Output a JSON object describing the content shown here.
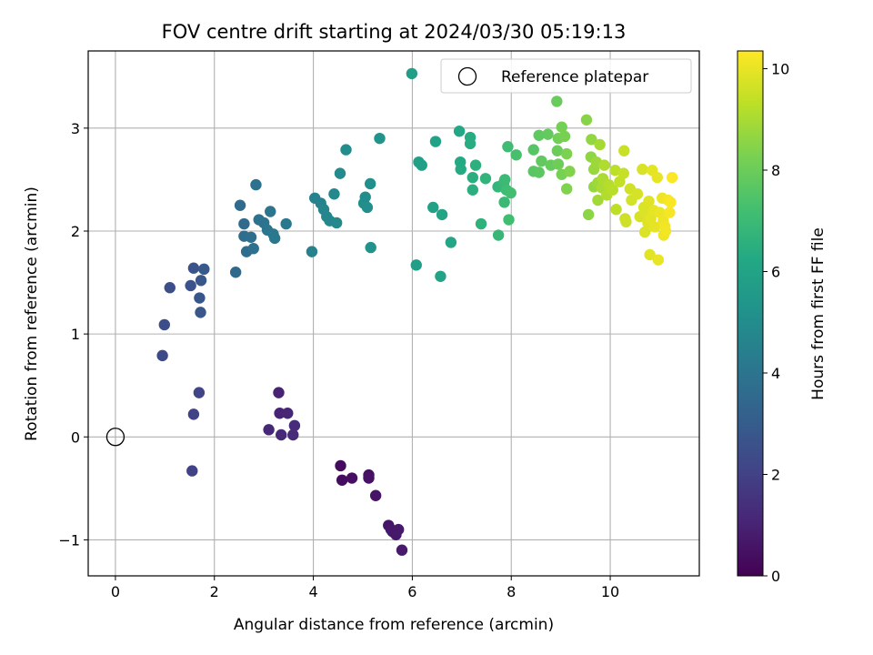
{
  "chart_data": {
    "type": "scatter",
    "title": "FOV centre drift starting at 2024/03/30 05:19:13",
    "xlabel": "Angular distance from reference (arcmin)",
    "ylabel": "Rotation from reference (arcmin)",
    "xlim": [
      -0.55,
      11.8
    ],
    "ylim": [
      -1.35,
      3.75
    ],
    "xticks": [
      0,
      2,
      4,
      6,
      8,
      10
    ],
    "yticks": [
      -1,
      0,
      1,
      2,
      3
    ],
    "ytick_labels": [
      "−1",
      "0",
      "1",
      "2",
      "3"
    ],
    "grid": true,
    "legend": {
      "position": "top-right",
      "entries": [
        "Reference platepar"
      ]
    },
    "reference_point": {
      "x": 0,
      "y": 0,
      "label": "Reference platepar"
    },
    "colormap": "viridis",
    "colorbar": {
      "label": "Hours from first FF file",
      "range": [
        0,
        10.35
      ],
      "ticks": [
        0,
        2,
        4,
        6,
        8,
        10
      ]
    },
    "points": [
      {
        "x": 4.55,
        "y": -0.28,
        "h": 0.3
      },
      {
        "x": 4.58,
        "y": -0.42,
        "h": 0.35
      },
      {
        "x": 4.78,
        "y": -0.4,
        "h": 0.4
      },
      {
        "x": 5.12,
        "y": -0.37,
        "h": 0.45
      },
      {
        "x": 5.12,
        "y": -0.4,
        "h": 0.5
      },
      {
        "x": 5.26,
        "y": -0.57,
        "h": 0.55
      },
      {
        "x": 5.52,
        "y": -0.86,
        "h": 0.6
      },
      {
        "x": 5.57,
        "y": -0.9,
        "h": 0.62
      },
      {
        "x": 5.6,
        "y": -0.92,
        "h": 0.65
      },
      {
        "x": 5.67,
        "y": -0.95,
        "h": 0.68
      },
      {
        "x": 5.72,
        "y": -0.9,
        "h": 0.7
      },
      {
        "x": 5.79,
        "y": -1.1,
        "h": 0.75
      },
      {
        "x": 3.3,
        "y": 0.43,
        "h": 1.0
      },
      {
        "x": 3.32,
        "y": 0.23,
        "h": 1.05
      },
      {
        "x": 3.48,
        "y": 0.23,
        "h": 1.1
      },
      {
        "x": 3.1,
        "y": 0.07,
        "h": 1.15
      },
      {
        "x": 3.35,
        "y": 0.02,
        "h": 1.2
      },
      {
        "x": 3.59,
        "y": 0.02,
        "h": 1.25
      },
      {
        "x": 3.62,
        "y": 0.11,
        "h": 1.3
      },
      {
        "x": 1.55,
        "y": -0.33,
        "h": 2.0
      },
      {
        "x": 1.58,
        "y": 0.22,
        "h": 2.05
      },
      {
        "x": 1.69,
        "y": 0.43,
        "h": 2.1
      },
      {
        "x": 0.95,
        "y": 0.79,
        "h": 2.3
      },
      {
        "x": 0.99,
        "y": 1.09,
        "h": 2.4
      },
      {
        "x": 1.1,
        "y": 1.45,
        "h": 2.5
      },
      {
        "x": 1.52,
        "y": 1.47,
        "h": 2.6
      },
      {
        "x": 1.58,
        "y": 1.64,
        "h": 2.7
      },
      {
        "x": 1.7,
        "y": 1.35,
        "h": 2.75
      },
      {
        "x": 1.72,
        "y": 1.21,
        "h": 2.8
      },
      {
        "x": 1.73,
        "y": 1.52,
        "h": 2.85
      },
      {
        "x": 1.79,
        "y": 1.63,
        "h": 2.9
      },
      {
        "x": 2.43,
        "y": 1.6,
        "h": 3.5
      },
      {
        "x": 2.52,
        "y": 2.25,
        "h": 3.55
      },
      {
        "x": 2.6,
        "y": 2.07,
        "h": 3.6
      },
      {
        "x": 2.6,
        "y": 1.95,
        "h": 3.65
      },
      {
        "x": 2.65,
        "y": 1.8,
        "h": 3.7
      },
      {
        "x": 2.74,
        "y": 1.94,
        "h": 3.75
      },
      {
        "x": 2.79,
        "y": 1.83,
        "h": 3.8
      },
      {
        "x": 2.84,
        "y": 2.45,
        "h": 3.85
      },
      {
        "x": 2.9,
        "y": 2.11,
        "h": 3.9
      },
      {
        "x": 3.0,
        "y": 2.08,
        "h": 3.95
      },
      {
        "x": 3.07,
        "y": 2.01,
        "h": 4.0
      },
      {
        "x": 3.13,
        "y": 2.19,
        "h": 4.05
      },
      {
        "x": 3.19,
        "y": 1.97,
        "h": 4.1
      },
      {
        "x": 3.22,
        "y": 1.93,
        "h": 4.15
      },
      {
        "x": 3.45,
        "y": 2.07,
        "h": 4.2
      },
      {
        "x": 3.97,
        "y": 1.8,
        "h": 4.5
      },
      {
        "x": 4.03,
        "y": 2.32,
        "h": 4.55
      },
      {
        "x": 4.15,
        "y": 2.27,
        "h": 4.6
      },
      {
        "x": 4.21,
        "y": 2.21,
        "h": 4.65
      },
      {
        "x": 4.27,
        "y": 2.14,
        "h": 4.7
      },
      {
        "x": 4.33,
        "y": 2.1,
        "h": 4.75
      },
      {
        "x": 4.42,
        "y": 2.36,
        "h": 4.8
      },
      {
        "x": 4.47,
        "y": 2.08,
        "h": 4.85
      },
      {
        "x": 4.54,
        "y": 2.56,
        "h": 4.9
      },
      {
        "x": 4.66,
        "y": 2.79,
        "h": 4.95
      },
      {
        "x": 5.02,
        "y": 2.27,
        "h": 5.0
      },
      {
        "x": 5.05,
        "y": 2.33,
        "h": 5.05
      },
      {
        "x": 5.09,
        "y": 2.23,
        "h": 5.1
      },
      {
        "x": 5.15,
        "y": 2.46,
        "h": 5.15
      },
      {
        "x": 5.16,
        "y": 1.84,
        "h": 5.2
      },
      {
        "x": 5.34,
        "y": 2.9,
        "h": 5.3
      },
      {
        "x": 5.99,
        "y": 3.53,
        "h": 5.7
      },
      {
        "x": 6.08,
        "y": 1.67,
        "h": 5.75
      },
      {
        "x": 6.13,
        "y": 2.67,
        "h": 5.8
      },
      {
        "x": 6.19,
        "y": 2.64,
        "h": 5.85
      },
      {
        "x": 6.42,
        "y": 2.23,
        "h": 5.9
      },
      {
        "x": 6.47,
        "y": 2.87,
        "h": 5.95
      },
      {
        "x": 6.57,
        "y": 1.56,
        "h": 6.0
      },
      {
        "x": 6.6,
        "y": 2.16,
        "h": 6.05
      },
      {
        "x": 6.78,
        "y": 1.89,
        "h": 6.1
      },
      {
        "x": 6.95,
        "y": 2.97,
        "h": 6.2
      },
      {
        "x": 6.97,
        "y": 2.67,
        "h": 6.25
      },
      {
        "x": 6.98,
        "y": 2.6,
        "h": 6.3
      },
      {
        "x": 7.17,
        "y": 2.91,
        "h": 6.35
      },
      {
        "x": 7.17,
        "y": 2.85,
        "h": 6.4
      },
      {
        "x": 7.22,
        "y": 2.52,
        "h": 6.45
      },
      {
        "x": 7.22,
        "y": 2.4,
        "h": 6.5
      },
      {
        "x": 7.28,
        "y": 2.64,
        "h": 6.55
      },
      {
        "x": 7.39,
        "y": 2.07,
        "h": 6.6
      },
      {
        "x": 7.48,
        "y": 2.51,
        "h": 6.7
      },
      {
        "x": 7.73,
        "y": 2.43,
        "h": 6.8
      },
      {
        "x": 7.74,
        "y": 1.96,
        "h": 6.85
      },
      {
        "x": 7.85,
        "y": 2.47,
        "h": 6.9
      },
      {
        "x": 7.86,
        "y": 2.28,
        "h": 6.95
      },
      {
        "x": 7.87,
        "y": 2.5,
        "h": 7.0
      },
      {
        "x": 7.9,
        "y": 2.4,
        "h": 7.05
      },
      {
        "x": 7.93,
        "y": 2.82,
        "h": 7.1
      },
      {
        "x": 7.95,
        "y": 2.11,
        "h": 7.15
      },
      {
        "x": 7.99,
        "y": 2.37,
        "h": 7.2
      },
      {
        "x": 8.1,
        "y": 2.74,
        "h": 7.3
      },
      {
        "x": 8.45,
        "y": 2.79,
        "h": 7.6
      },
      {
        "x": 8.45,
        "y": 2.58,
        "h": 7.65
      },
      {
        "x": 8.56,
        "y": 2.57,
        "h": 7.7
      },
      {
        "x": 8.56,
        "y": 2.93,
        "h": 7.75
      },
      {
        "x": 8.61,
        "y": 2.68,
        "h": 7.8
      },
      {
        "x": 8.74,
        "y": 2.94,
        "h": 7.85
      },
      {
        "x": 8.8,
        "y": 2.64,
        "h": 7.9
      },
      {
        "x": 8.92,
        "y": 3.26,
        "h": 7.95
      },
      {
        "x": 8.93,
        "y": 2.78,
        "h": 8.0
      },
      {
        "x": 8.95,
        "y": 2.65,
        "h": 8.05
      },
      {
        "x": 8.95,
        "y": 2.9,
        "h": 8.1
      },
      {
        "x": 9.02,
        "y": 3.01,
        "h": 8.15
      },
      {
        "x": 9.02,
        "y": 2.55,
        "h": 8.2
      },
      {
        "x": 9.08,
        "y": 2.92,
        "h": 8.25
      },
      {
        "x": 9.12,
        "y": 2.75,
        "h": 8.3
      },
      {
        "x": 9.12,
        "y": 2.41,
        "h": 8.35
      },
      {
        "x": 9.18,
        "y": 2.58,
        "h": 8.4
      },
      {
        "x": 9.52,
        "y": 3.08,
        "h": 8.5
      },
      {
        "x": 9.56,
        "y": 2.16,
        "h": 8.55
      },
      {
        "x": 9.61,
        "y": 2.72,
        "h": 8.6
      },
      {
        "x": 9.62,
        "y": 2.89,
        "h": 8.65
      },
      {
        "x": 9.67,
        "y": 2.43,
        "h": 8.7
      },
      {
        "x": 9.67,
        "y": 2.6,
        "h": 8.75
      },
      {
        "x": 9.72,
        "y": 2.67,
        "h": 8.8
      },
      {
        "x": 9.75,
        "y": 2.47,
        "h": 8.85
      },
      {
        "x": 9.75,
        "y": 2.3,
        "h": 8.9
      },
      {
        "x": 9.79,
        "y": 2.84,
        "h": 8.95
      },
      {
        "x": 9.83,
        "y": 2.42,
        "h": 9.0
      },
      {
        "x": 9.85,
        "y": 2.51,
        "h": 9.05
      },
      {
        "x": 9.88,
        "y": 2.64,
        "h": 9.1
      },
      {
        "x": 9.93,
        "y": 2.35,
        "h": 9.15
      },
      {
        "x": 9.97,
        "y": 2.45,
        "h": 9.2
      },
      {
        "x": 10.05,
        "y": 2.4,
        "h": 9.25
      },
      {
        "x": 10.1,
        "y": 2.59,
        "h": 9.3
      },
      {
        "x": 10.12,
        "y": 2.21,
        "h": 9.35
      },
      {
        "x": 10.19,
        "y": 2.48,
        "h": 9.4
      },
      {
        "x": 10.27,
        "y": 2.56,
        "h": 9.45
      },
      {
        "x": 10.28,
        "y": 2.78,
        "h": 9.5
      },
      {
        "x": 10.3,
        "y": 2.12,
        "h": 9.55
      },
      {
        "x": 10.32,
        "y": 2.09,
        "h": 9.6
      },
      {
        "x": 10.4,
        "y": 2.41,
        "h": 9.62
      },
      {
        "x": 10.43,
        "y": 2.3,
        "h": 9.65
      },
      {
        "x": 10.55,
        "y": 2.36,
        "h": 9.7
      },
      {
        "x": 10.6,
        "y": 2.14,
        "h": 9.72
      },
      {
        "x": 10.65,
        "y": 2.6,
        "h": 9.75
      },
      {
        "x": 10.68,
        "y": 2.23,
        "h": 9.78
      },
      {
        "x": 10.7,
        "y": 1.99,
        "h": 9.8
      },
      {
        "x": 10.72,
        "y": 2.16,
        "h": 9.82
      },
      {
        "x": 10.76,
        "y": 2.08,
        "h": 9.85
      },
      {
        "x": 10.78,
        "y": 2.29,
        "h": 9.87
      },
      {
        "x": 10.8,
        "y": 1.77,
        "h": 9.9
      },
      {
        "x": 10.82,
        "y": 2.12,
        "h": 9.92
      },
      {
        "x": 10.85,
        "y": 2.59,
        "h": 9.94
      },
      {
        "x": 10.88,
        "y": 2.2,
        "h": 9.96
      },
      {
        "x": 10.9,
        "y": 2.04,
        "h": 9.98
      },
      {
        "x": 10.95,
        "y": 2.52,
        "h": 10.0
      },
      {
        "x": 10.97,
        "y": 1.72,
        "h": 10.02
      },
      {
        "x": 11.0,
        "y": 2.18,
        "h": 10.05
      },
      {
        "x": 11.05,
        "y": 2.32,
        "h": 10.08
      },
      {
        "x": 11.07,
        "y": 2.1,
        "h": 10.1
      },
      {
        "x": 11.08,
        "y": 1.96,
        "h": 10.12
      },
      {
        "x": 11.1,
        "y": 2.05,
        "h": 10.15
      },
      {
        "x": 11.12,
        "y": 2.0,
        "h": 10.18
      },
      {
        "x": 11.17,
        "y": 2.3,
        "h": 10.2
      },
      {
        "x": 11.2,
        "y": 2.18,
        "h": 10.25
      },
      {
        "x": 11.22,
        "y": 2.28,
        "h": 10.28
      },
      {
        "x": 11.25,
        "y": 2.52,
        "h": 10.32
      }
    ]
  }
}
